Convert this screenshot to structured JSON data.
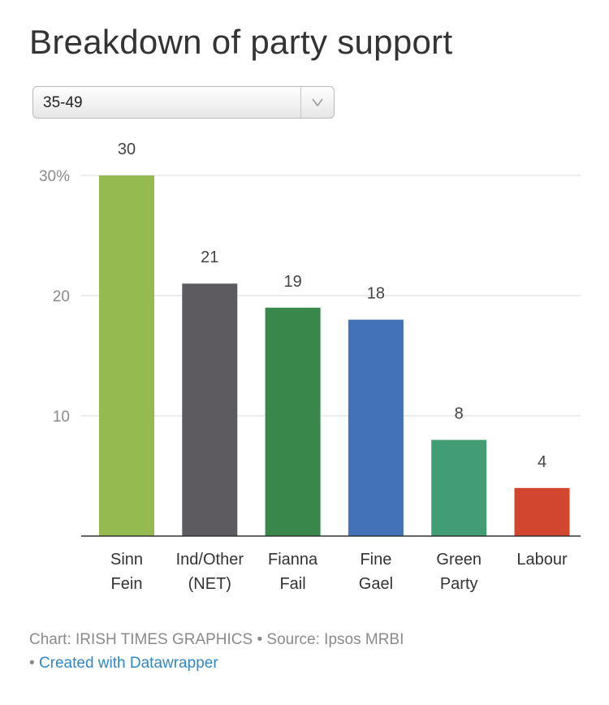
{
  "title": "Breakdown of party support",
  "selector": {
    "value": "35-49"
  },
  "chart_data": {
    "type": "bar",
    "title": "Breakdown of party support",
    "categories": [
      [
        "Sinn",
        "Fein"
      ],
      [
        "Ind/Other",
        "(NET)"
      ],
      [
        "Fianna",
        "Fail"
      ],
      [
        "Fine",
        "Gael"
      ],
      [
        "Green",
        "Party"
      ],
      [
        "Labour"
      ]
    ],
    "values": [
      30,
      21,
      19,
      18,
      8,
      4
    ],
    "colors": [
      "#95ba4f",
      "#5d5b60",
      "#3a874b",
      "#4472b8",
      "#429c74",
      "#d2452f"
    ],
    "y_ticks": [
      {
        "value": 30,
        "label": "30%"
      },
      {
        "value": 20,
        "label": "20"
      },
      {
        "value": 10,
        "label": "10"
      }
    ],
    "ylim": [
      0,
      30
    ],
    "xlabel": "",
    "ylabel": ""
  },
  "footer": {
    "chart_credit": "Chart: IRISH TIMES GRAPHICS • Source: Ipsos MRBI",
    "bullet": "•",
    "link_text": "Created with Datawrapper"
  }
}
